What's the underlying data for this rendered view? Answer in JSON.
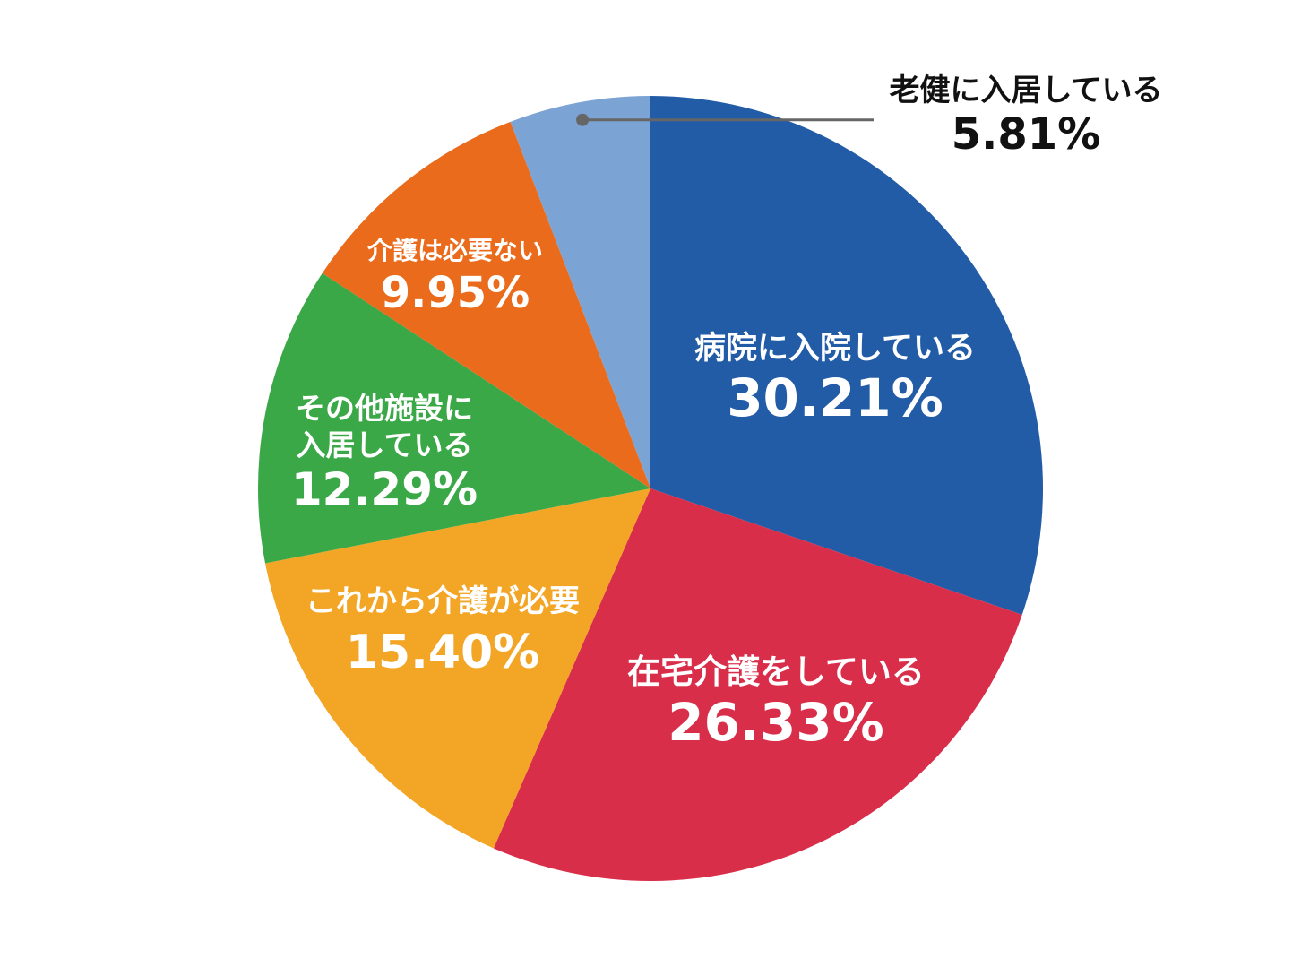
{
  "chart_data": {
    "type": "pie",
    "start_angle": "12 o'clock",
    "direction": "clockwise",
    "slices": [
      {
        "label": [
          "病院に入院している"
        ],
        "value": 30.21,
        "value_text": "30.21%",
        "color": "#225ba6"
      },
      {
        "label": [
          "在宅介護をしている"
        ],
        "value": 26.33,
        "value_text": "26.33%",
        "color": "#d92e4a"
      },
      {
        "label": [
          "これから介護が必要"
        ],
        "value": 15.4,
        "value_text": "15.40%",
        "color": "#f3a526"
      },
      {
        "label": [
          "その他施設に",
          "入居している"
        ],
        "value": 12.29,
        "value_text": "12.29%",
        "color": "#3ba847"
      },
      {
        "label": [
          "介護は必要ない"
        ],
        "value": 9.95,
        "value_text": "9.95%",
        "color": "#e96b1b"
      },
      {
        "label": [
          "老健に入居している"
        ],
        "value": 5.81,
        "value_text": "5.81%",
        "color": "#7ba3d4"
      }
    ]
  }
}
